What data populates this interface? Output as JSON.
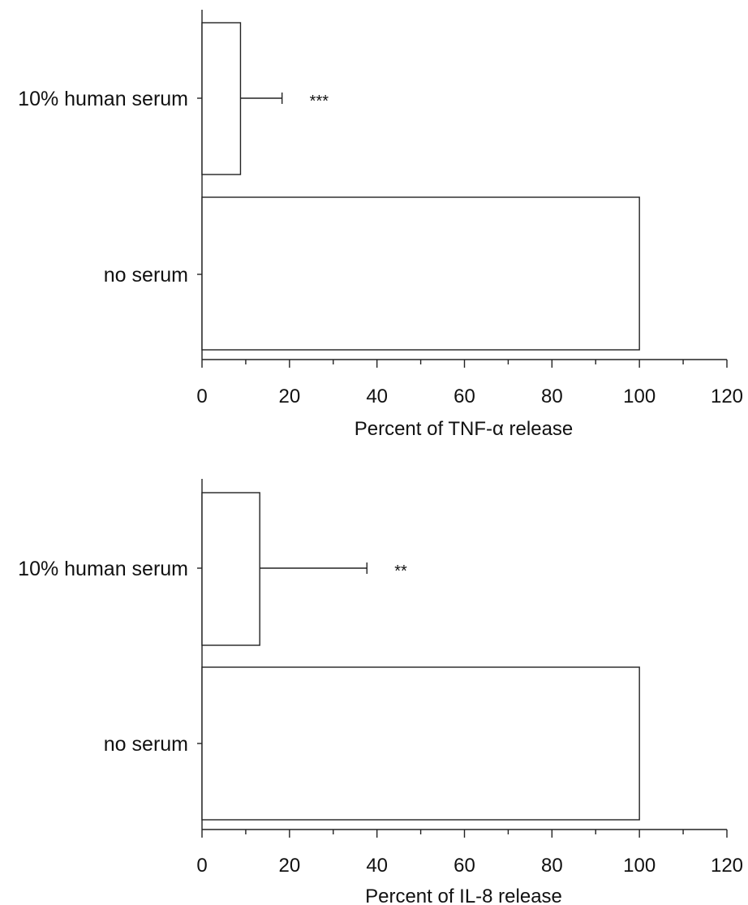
{
  "chart_data": [
    {
      "type": "bar",
      "orientation": "horizontal",
      "categories": [
        "10% human serum",
        "no serum"
      ],
      "values": [
        8.8,
        100
      ],
      "error": [
        9.5,
        null
      ],
      "significance": [
        "***",
        ""
      ],
      "xlabel": "Percent of TNF-α release",
      "xlim": [
        0,
        120
      ],
      "xticks": [
        0,
        20,
        40,
        60,
        80,
        100,
        120
      ],
      "grid": false
    },
    {
      "type": "bar",
      "orientation": "horizontal",
      "categories": [
        "10% human serum",
        "no serum"
      ],
      "values": [
        13.2,
        100
      ],
      "error": [
        24.5,
        null
      ],
      "significance": [
        "**",
        ""
      ],
      "xlabel": "Percent of IL-8 release",
      "xlim": [
        0,
        120
      ],
      "xticks": [
        0,
        20,
        40,
        60,
        80,
        100,
        120
      ],
      "grid": false
    }
  ]
}
